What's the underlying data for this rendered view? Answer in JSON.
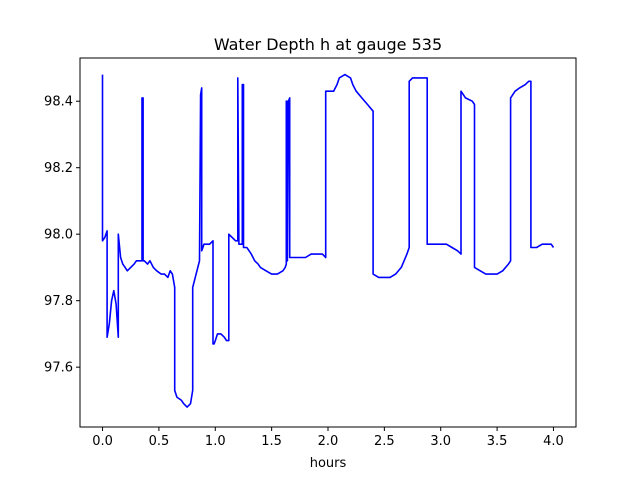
{
  "chart_data": {
    "type": "line",
    "title": "Water Depth h at gauge 535",
    "xlabel": "hours",
    "ylabel": "",
    "xlim": [
      -0.2,
      4.2
    ],
    "ylim": [
      97.42,
      98.53
    ],
    "xticks": [
      0.0,
      0.5,
      1.0,
      1.5,
      2.0,
      2.5,
      3.0,
      3.5,
      4.0
    ],
    "xtick_labels": [
      "0.0",
      "0.5",
      "1.0",
      "1.5",
      "2.0",
      "2.5",
      "3.0",
      "3.5",
      "4.0"
    ],
    "yticks": [
      97.6,
      97.8,
      98.0,
      98.2,
      98.4
    ],
    "ytick_labels": [
      "97.6",
      "97.8",
      "98.0",
      "98.2",
      "98.4"
    ],
    "grid": false,
    "legend": "none",
    "series": [
      {
        "color": "#0000ff",
        "x": [
          0.0,
          0.0,
          0.02,
          0.04,
          0.04,
          0.06,
          0.08,
          0.1,
          0.12,
          0.14,
          0.14,
          0.16,
          0.18,
          0.2,
          0.22,
          0.25,
          0.28,
          0.3,
          0.35,
          0.35,
          0.36,
          0.36,
          0.37,
          0.4,
          0.42,
          0.45,
          0.48,
          0.52,
          0.55,
          0.58,
          0.6,
          0.62,
          0.64,
          0.64,
          0.65,
          0.66,
          0.7,
          0.72,
          0.75,
          0.78,
          0.8,
          0.8,
          0.86,
          0.87,
          0.88,
          0.88,
          0.9,
          0.92,
          0.95,
          0.98,
          0.98,
          0.99,
          1.0,
          1.02,
          1.05,
          1.08,
          1.1,
          1.12,
          1.12,
          1.15,
          1.18,
          1.2,
          1.2,
          1.21,
          1.22,
          1.24,
          1.24,
          1.25,
          1.25,
          1.28,
          1.3,
          1.32,
          1.35,
          1.38,
          1.4,
          1.45,
          1.5,
          1.55,
          1.6,
          1.62,
          1.63,
          1.63,
          1.64,
          1.64,
          1.65,
          1.66,
          1.66,
          1.7,
          1.72,
          1.72,
          1.75,
          1.8,
          1.85,
          1.9,
          1.95,
          1.98,
          1.98,
          2.02,
          2.05,
          2.08,
          2.1,
          2.15,
          2.2,
          2.22,
          2.25,
          2.3,
          2.35,
          2.4,
          2.4,
          2.45,
          2.5,
          2.55,
          2.6,
          2.65,
          2.7,
          2.72,
          2.72,
          2.75,
          2.8,
          2.85,
          2.88,
          2.88,
          2.95,
          3.0,
          3.05,
          3.1,
          3.15,
          3.18,
          3.18,
          3.22,
          3.28,
          3.3,
          3.3,
          3.35,
          3.4,
          3.45,
          3.5,
          3.55,
          3.6,
          3.62,
          3.62,
          3.66,
          3.7,
          3.75,
          3.78,
          3.8,
          3.8,
          3.85,
          3.9,
          3.95,
          3.98,
          4.0
        ],
        "values": [
          98.48,
          97.98,
          97.99,
          98.01,
          97.69,
          97.73,
          97.8,
          97.83,
          97.79,
          97.69,
          98.0,
          97.93,
          97.91,
          97.9,
          97.89,
          97.9,
          97.91,
          97.92,
          97.92,
          98.41,
          98.41,
          97.92,
          97.92,
          97.91,
          97.92,
          97.9,
          97.89,
          97.88,
          97.88,
          97.87,
          97.89,
          97.88,
          97.84,
          97.53,
          97.52,
          97.51,
          97.5,
          97.49,
          97.48,
          97.49,
          97.53,
          97.84,
          97.92,
          98.42,
          98.44,
          97.95,
          97.97,
          97.97,
          97.97,
          97.98,
          97.67,
          97.67,
          97.68,
          97.7,
          97.7,
          97.69,
          97.68,
          97.68,
          98.0,
          97.99,
          97.98,
          97.98,
          98.47,
          97.97,
          97.97,
          97.97,
          98.45,
          98.45,
          97.96,
          97.96,
          97.95,
          97.94,
          97.92,
          97.91,
          97.9,
          97.89,
          97.88,
          97.88,
          97.89,
          97.9,
          97.91,
          98.4,
          98.4,
          97.92,
          98.4,
          98.41,
          97.93,
          97.93,
          97.93,
          97.93,
          97.93,
          97.93,
          97.94,
          97.94,
          97.94,
          97.93,
          98.43,
          98.43,
          98.43,
          98.45,
          98.47,
          98.48,
          98.47,
          98.45,
          98.43,
          98.41,
          98.39,
          98.37,
          97.88,
          97.87,
          97.87,
          97.87,
          97.88,
          97.9,
          97.94,
          97.96,
          98.46,
          98.47,
          98.47,
          98.47,
          98.47,
          97.97,
          97.97,
          97.97,
          97.97,
          97.96,
          97.95,
          97.94,
          98.43,
          98.41,
          98.4,
          98.39,
          97.9,
          97.89,
          97.88,
          97.88,
          97.88,
          97.89,
          97.91,
          97.92,
          98.41,
          98.43,
          98.44,
          98.45,
          98.46,
          98.46,
          97.96,
          97.96,
          97.97,
          97.97,
          97.97,
          97.96
        ]
      }
    ]
  }
}
